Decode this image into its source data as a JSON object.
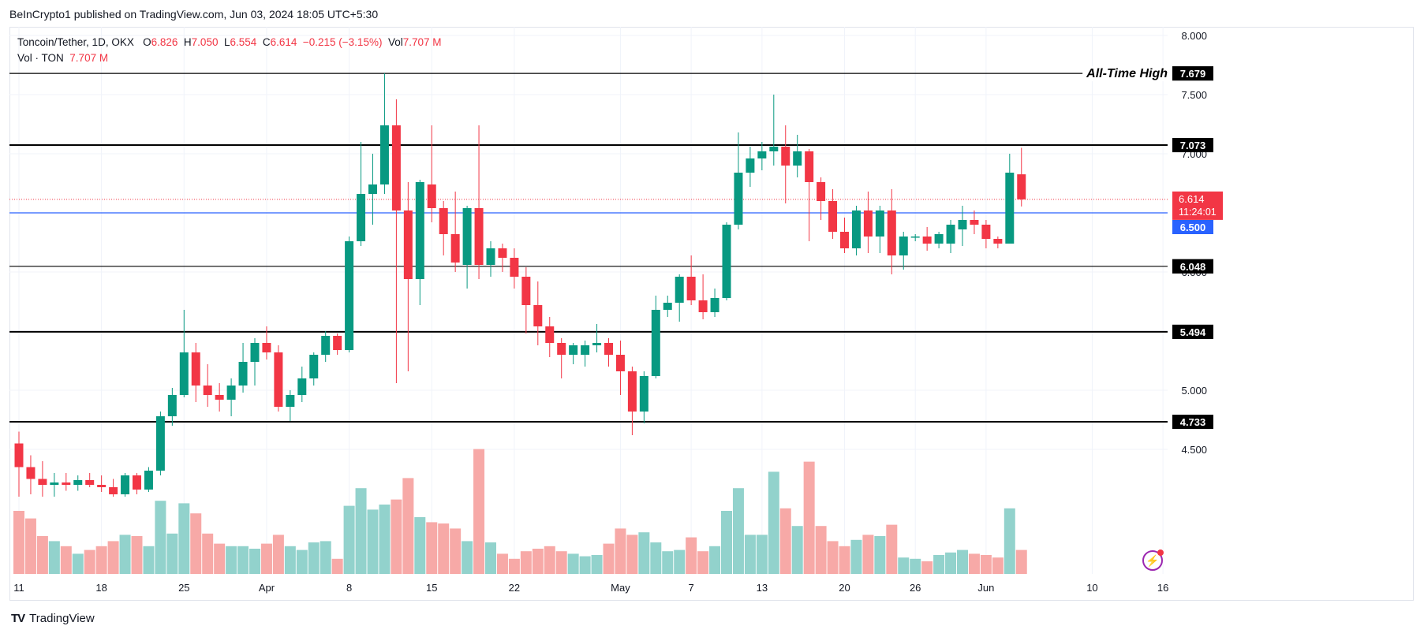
{
  "publisher": "BeInCrypto1 published on TradingView.com, Jun 03, 2024 18:05 UTC+5:30",
  "brand": "TradingView",
  "legend": {
    "symbol": "Toncoin/Tether, 1D, OKX",
    "o_label": "O",
    "o": "6.826",
    "h_label": "H",
    "h": "7.050",
    "l_label": "L",
    "l": "6.554",
    "c_label": "C",
    "c": "6.614",
    "change": "−0.215 (−3.15%)",
    "vol_label": "Vol",
    "vol": "7.707 M",
    "vol_row_label": "Vol · TON",
    "vol_row": "7.707 M"
  },
  "colors": {
    "up": "#089981",
    "down": "#f23645",
    "up_vol": "#92d2cc",
    "down_vol": "#f7a9a7",
    "blue": "#2962ff"
  },
  "chart_data": {
    "type": "candlestick",
    "title": "Toncoin/Tether, 1D, OKX",
    "ylim": [
      4.1,
      8.1
    ],
    "y_ticks": [
      "8.000",
      "7.500",
      "7.000",
      "6.500",
      "6.000",
      "5.500",
      "5.000",
      "4.500"
    ],
    "x_ticks": [
      "11",
      "18",
      "25",
      "Apr",
      "8",
      "15",
      "22",
      "May",
      "7",
      "13",
      "20",
      "26",
      "Jun",
      "10",
      "16"
    ],
    "annotation": "All-Time High",
    "levels": [
      {
        "value": "7.679",
        "style": "thin",
        "label": "All-Time High"
      },
      {
        "value": "7.073",
        "style": "thick"
      },
      {
        "value": "6.500",
        "style": "blue"
      },
      {
        "value": "6.048",
        "style": "thin"
      },
      {
        "value": "5.494",
        "style": "thick"
      },
      {
        "value": "4.733",
        "style": "thick"
      }
    ],
    "last_price": "6.614",
    "countdown": "11:24:01",
    "candles": [
      {
        "date": "Mar 11",
        "o": 4.55,
        "h": 4.65,
        "l": 4.1,
        "c": 4.35,
        "v": 0.5
      },
      {
        "date": "Mar 12",
        "o": 4.35,
        "h": 4.45,
        "l": 4.12,
        "c": 4.25,
        "v": 0.44
      },
      {
        "date": "Mar 13",
        "o": 4.25,
        "h": 4.4,
        "l": 4.1,
        "c": 4.2,
        "v": 0.3
      },
      {
        "date": "Mar 14",
        "o": 4.2,
        "h": 4.3,
        "l": 4.1,
        "c": 4.22,
        "v": 0.26
      },
      {
        "date": "Mar 15",
        "o": 4.22,
        "h": 4.3,
        "l": 4.15,
        "c": 4.2,
        "v": 0.22
      },
      {
        "date": "Mar 16",
        "o": 4.2,
        "h": 4.28,
        "l": 4.15,
        "c": 4.24,
        "v": 0.16
      },
      {
        "date": "Mar 17",
        "o": 4.24,
        "h": 4.3,
        "l": 4.18,
        "c": 4.2,
        "v": 0.19
      },
      {
        "date": "Mar 18",
        "o": 4.2,
        "h": 4.28,
        "l": 4.14,
        "c": 4.18,
        "v": 0.22
      },
      {
        "date": "Mar 19",
        "o": 4.18,
        "h": 4.25,
        "l": 4.1,
        "c": 4.12,
        "v": 0.26
      },
      {
        "date": "Mar 20",
        "o": 4.12,
        "h": 4.3,
        "l": 4.1,
        "c": 4.28,
        "v": 0.31
      },
      {
        "date": "Mar 21",
        "o": 4.28,
        "h": 4.3,
        "l": 4.12,
        "c": 4.16,
        "v": 0.3
      },
      {
        "date": "Mar 22",
        "o": 4.16,
        "h": 4.35,
        "l": 4.14,
        "c": 4.32,
        "v": 0.22
      },
      {
        "date": "Mar 23",
        "o": 4.32,
        "h": 4.82,
        "l": 4.28,
        "c": 4.78,
        "v": 0.58
      },
      {
        "date": "Mar 24",
        "o": 4.78,
        "h": 5.02,
        "l": 4.7,
        "c": 4.96,
        "v": 0.32
      },
      {
        "date": "Mar 25",
        "o": 4.96,
        "h": 5.68,
        "l": 4.94,
        "c": 5.32,
        "v": 0.56
      },
      {
        "date": "Mar 26",
        "o": 5.32,
        "h": 5.4,
        "l": 4.9,
        "c": 5.04,
        "v": 0.48
      },
      {
        "date": "Mar 27",
        "o": 5.04,
        "h": 5.22,
        "l": 4.86,
        "c": 4.96,
        "v": 0.32
      },
      {
        "date": "Mar 28",
        "o": 4.96,
        "h": 5.06,
        "l": 4.82,
        "c": 4.92,
        "v": 0.24
      },
      {
        "date": "Mar 29",
        "o": 4.92,
        "h": 5.1,
        "l": 4.78,
        "c": 5.04,
        "v": 0.22
      },
      {
        "date": "Mar 30",
        "o": 5.04,
        "h": 5.4,
        "l": 4.98,
        "c": 5.24,
        "v": 0.22
      },
      {
        "date": "Mar 31",
        "o": 5.24,
        "h": 5.44,
        "l": 5.04,
        "c": 5.4,
        "v": 0.2
      },
      {
        "date": "Apr 1",
        "o": 5.4,
        "h": 5.54,
        "l": 5.26,
        "c": 5.32,
        "v": 0.24
      },
      {
        "date": "Apr 2",
        "o": 5.32,
        "h": 5.38,
        "l": 4.82,
        "c": 4.86,
        "v": 0.31
      },
      {
        "date": "Apr 3",
        "o": 4.86,
        "h": 5.0,
        "l": 4.74,
        "c": 4.96,
        "v": 0.22
      },
      {
        "date": "Apr 4",
        "o": 4.96,
        "h": 5.2,
        "l": 4.9,
        "c": 5.1,
        "v": 0.19
      },
      {
        "date": "Apr 5",
        "o": 5.1,
        "h": 5.32,
        "l": 5.04,
        "c": 5.3,
        "v": 0.25
      },
      {
        "date": "Apr 6",
        "o": 5.3,
        "h": 5.5,
        "l": 5.24,
        "c": 5.46,
        "v": 0.26
      },
      {
        "date": "Apr 7",
        "o": 5.46,
        "h": 5.48,
        "l": 5.3,
        "c": 5.34,
        "v": 0.12
      },
      {
        "date": "Apr 8",
        "o": 5.34,
        "h": 6.3,
        "l": 5.32,
        "c": 6.26,
        "v": 0.54
      },
      {
        "date": "Apr 9",
        "o": 6.26,
        "h": 7.1,
        "l": 6.22,
        "c": 6.66,
        "v": 0.68
      },
      {
        "date": "Apr 10",
        "o": 6.66,
        "h": 7.0,
        "l": 6.4,
        "c": 6.74,
        "v": 0.51
      },
      {
        "date": "Apr 11",
        "o": 6.74,
        "h": 7.68,
        "l": 6.66,
        "c": 7.24,
        "v": 0.55
      },
      {
        "date": "Apr 12",
        "o": 7.24,
        "h": 7.46,
        "l": 5.06,
        "c": 6.52,
        "v": 0.59
      },
      {
        "date": "Apr 13",
        "o": 6.52,
        "h": 6.76,
        "l": 5.16,
        "c": 5.94,
        "v": 0.76
      },
      {
        "date": "Apr 14",
        "o": 5.94,
        "h": 6.78,
        "l": 5.72,
        "c": 6.76,
        "v": 0.45
      },
      {
        "date": "Apr 15",
        "o": 6.74,
        "h": 7.24,
        "l": 6.42,
        "c": 6.54,
        "v": 0.41
      },
      {
        "date": "Apr 16",
        "o": 6.54,
        "h": 6.6,
        "l": 6.14,
        "c": 6.32,
        "v": 0.4
      },
      {
        "date": "Apr 17",
        "o": 6.32,
        "h": 6.68,
        "l": 6.0,
        "c": 6.08,
        "v": 0.36
      },
      {
        "date": "Apr 18",
        "o": 6.06,
        "h": 6.56,
        "l": 5.86,
        "c": 6.54,
        "v": 0.26
      },
      {
        "date": "Apr 19",
        "o": 6.54,
        "h": 7.24,
        "l": 5.94,
        "c": 6.06,
        "v": 0.99
      },
      {
        "date": "Apr 20",
        "o": 6.06,
        "h": 6.26,
        "l": 5.96,
        "c": 6.2,
        "v": 0.25
      },
      {
        "date": "Apr 21",
        "o": 6.2,
        "h": 6.24,
        "l": 6.0,
        "c": 6.12,
        "v": 0.16
      },
      {
        "date": "Apr 22",
        "o": 6.12,
        "h": 6.2,
        "l": 5.86,
        "c": 5.96,
        "v": 0.12
      },
      {
        "date": "Apr 23",
        "o": 5.96,
        "h": 6.04,
        "l": 5.48,
        "c": 5.72,
        "v": 0.18
      },
      {
        "date": "Apr 24",
        "o": 5.72,
        "h": 5.92,
        "l": 5.38,
        "c": 5.54,
        "v": 0.2
      },
      {
        "date": "Apr 25",
        "o": 5.54,
        "h": 5.62,
        "l": 5.28,
        "c": 5.4,
        "v": 0.22
      },
      {
        "date": "Apr 26",
        "o": 5.4,
        "h": 5.44,
        "l": 5.1,
        "c": 5.3,
        "v": 0.18
      },
      {
        "date": "Apr 27",
        "o": 5.3,
        "h": 5.4,
        "l": 5.22,
        "c": 5.38,
        "v": 0.16
      },
      {
        "date": "Apr 28",
        "o": 5.3,
        "h": 5.42,
        "l": 5.2,
        "c": 5.38,
        "v": 0.14
      },
      {
        "date": "Apr 29",
        "o": 5.38,
        "h": 5.56,
        "l": 5.32,
        "c": 5.4,
        "v": 0.15
      },
      {
        "date": "Apr 30",
        "o": 5.4,
        "h": 5.44,
        "l": 5.2,
        "c": 5.3,
        "v": 0.24
      },
      {
        "date": "May 1",
        "o": 5.3,
        "h": 5.42,
        "l": 4.96,
        "c": 5.16,
        "v": 0.36
      },
      {
        "date": "May 2",
        "o": 5.16,
        "h": 5.2,
        "l": 4.62,
        "c": 4.82,
        "v": 0.31
      },
      {
        "date": "May 3",
        "o": 4.82,
        "h": 5.16,
        "l": 4.72,
        "c": 5.12,
        "v": 0.33
      },
      {
        "date": "May 4",
        "o": 5.12,
        "h": 5.8,
        "l": 5.1,
        "c": 5.68,
        "v": 0.25
      },
      {
        "date": "May 5",
        "o": 5.68,
        "h": 5.8,
        "l": 5.62,
        "c": 5.74,
        "v": 0.18
      },
      {
        "date": "May 6",
        "o": 5.74,
        "h": 5.98,
        "l": 5.58,
        "c": 5.96,
        "v": 0.19
      },
      {
        "date": "May 7",
        "o": 5.96,
        "h": 6.14,
        "l": 5.72,
        "c": 5.76,
        "v": 0.29
      },
      {
        "date": "May 8",
        "o": 5.76,
        "h": 5.98,
        "l": 5.6,
        "c": 5.66,
        "v": 0.18
      },
      {
        "date": "May 9",
        "o": 5.66,
        "h": 5.86,
        "l": 5.62,
        "c": 5.78,
        "v": 0.22
      },
      {
        "date": "May 10",
        "o": 5.78,
        "h": 6.42,
        "l": 5.76,
        "c": 6.4,
        "v": 0.5
      },
      {
        "date": "May 11",
        "o": 6.4,
        "h": 7.18,
        "l": 6.36,
        "c": 6.84,
        "v": 0.68
      },
      {
        "date": "May 12",
        "o": 6.84,
        "h": 7.06,
        "l": 6.72,
        "c": 6.96,
        "v": 0.31
      },
      {
        "date": "May 13",
        "o": 6.96,
        "h": 7.1,
        "l": 6.86,
        "c": 7.02,
        "v": 0.31
      },
      {
        "date": "May 14",
        "o": 7.02,
        "h": 7.5,
        "l": 6.9,
        "c": 7.06,
        "v": 0.81
      },
      {
        "date": "May 15",
        "o": 7.06,
        "h": 7.24,
        "l": 6.58,
        "c": 6.9,
        "v": 0.52
      },
      {
        "date": "May 16",
        "o": 6.9,
        "h": 7.16,
        "l": 6.8,
        "c": 7.02,
        "v": 0.38
      },
      {
        "date": "May 17",
        "o": 7.02,
        "h": 7.04,
        "l": 6.26,
        "c": 6.76,
        "v": 0.89
      },
      {
        "date": "May 18",
        "o": 6.76,
        "h": 6.8,
        "l": 6.44,
        "c": 6.6,
        "v": 0.38
      },
      {
        "date": "May 19",
        "o": 6.6,
        "h": 6.7,
        "l": 6.28,
        "c": 6.34,
        "v": 0.26
      },
      {
        "date": "May 20",
        "o": 6.34,
        "h": 6.46,
        "l": 6.16,
        "c": 6.2,
        "v": 0.22
      },
      {
        "date": "May 21",
        "o": 6.2,
        "h": 6.56,
        "l": 6.14,
        "c": 6.52,
        "v": 0.27
      },
      {
        "date": "May 22",
        "o": 6.52,
        "h": 6.68,
        "l": 6.16,
        "c": 6.3,
        "v": 0.31
      },
      {
        "date": "May 23",
        "o": 6.3,
        "h": 6.56,
        "l": 6.16,
        "c": 6.52,
        "v": 0.3
      },
      {
        "date": "May 24",
        "o": 6.52,
        "h": 6.7,
        "l": 5.98,
        "c": 6.14,
        "v": 0.39
      },
      {
        "date": "May 25",
        "o": 6.14,
        "h": 6.34,
        "l": 6.02,
        "c": 6.3,
        "v": 0.13
      },
      {
        "date": "May 26",
        "o": 6.3,
        "h": 6.32,
        "l": 6.26,
        "c": 6.3,
        "v": 0.12
      },
      {
        "date": "May 27",
        "o": 6.3,
        "h": 6.38,
        "l": 6.18,
        "c": 6.24,
        "v": 0.1
      },
      {
        "date": "May 28",
        "o": 6.24,
        "h": 6.34,
        "l": 6.2,
        "c": 6.32,
        "v": 0.15
      },
      {
        "date": "May 29",
        "o": 6.24,
        "h": 6.44,
        "l": 6.16,
        "c": 6.4,
        "v": 0.17
      },
      {
        "date": "May 30",
        "o": 6.36,
        "h": 6.56,
        "l": 6.22,
        "c": 6.44,
        "v": 0.19
      },
      {
        "date": "May 31",
        "o": 6.44,
        "h": 6.52,
        "l": 6.32,
        "c": 6.4,
        "v": 0.16
      },
      {
        "date": "Jun 1",
        "o": 6.4,
        "h": 6.44,
        "l": 6.2,
        "c": 6.28,
        "v": 0.15
      },
      {
        "date": "Jun 2",
        "o": 6.28,
        "h": 6.3,
        "l": 6.2,
        "c": 6.24,
        "v": 0.13
      },
      {
        "date": "Jun 3",
        "o": 6.24,
        "h": 7.0,
        "l": 6.24,
        "c": 6.84,
        "v": 0.52
      },
      {
        "date": "Jun 4",
        "o": 6.826,
        "h": 7.05,
        "l": 6.554,
        "c": 6.614,
        "v": 0.19
      }
    ]
  }
}
